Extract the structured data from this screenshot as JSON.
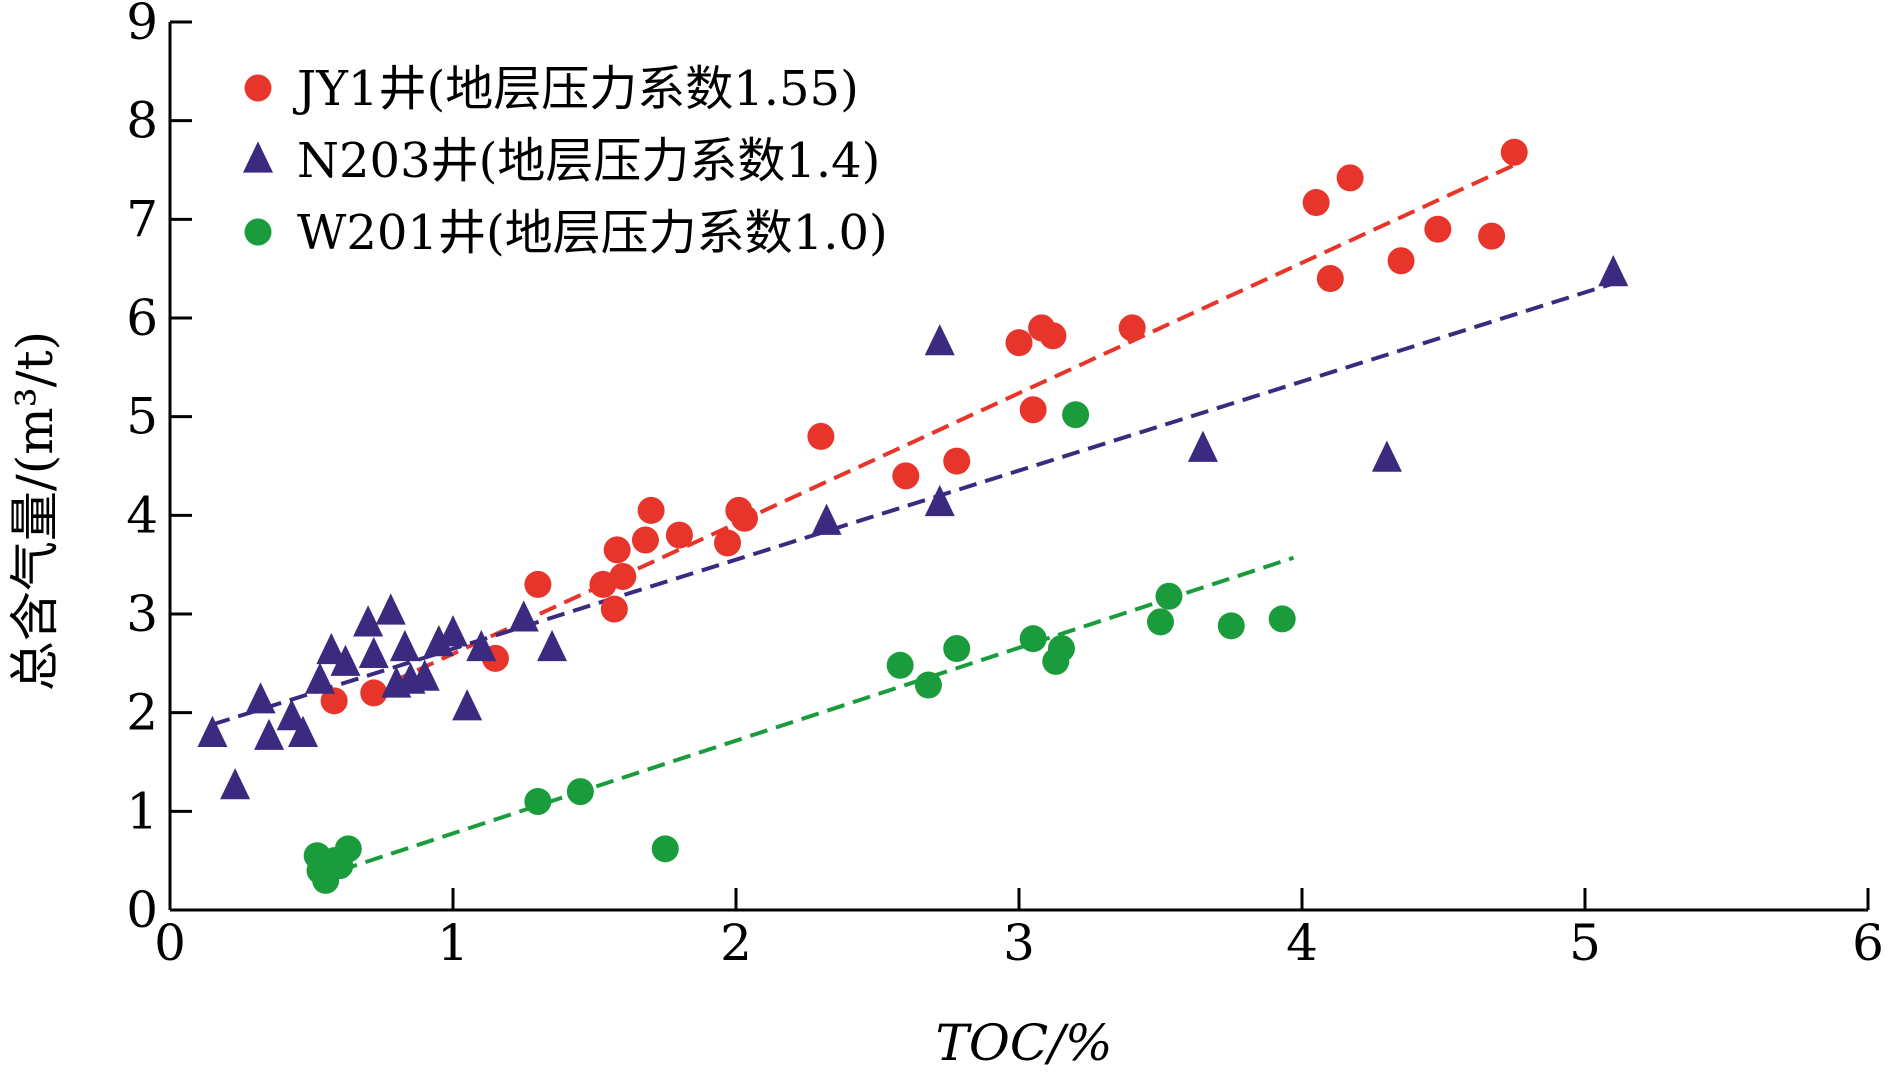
{
  "chart_data": {
    "type": "scatter",
    "xlabel": "TOC/%",
    "ylabel": "总含气量/(m³/t)",
    "xlim": [
      0,
      6
    ],
    "ylim": [
      0,
      9
    ],
    "xticks": [
      "0",
      "1",
      "2",
      "3",
      "4",
      "5",
      "6"
    ],
    "yticks": [
      "0",
      "1",
      "2",
      "3",
      "4",
      "5",
      "6",
      "7",
      "8",
      "9"
    ],
    "legend_position": "top-left",
    "grid": false,
    "series": [
      {
        "name": "JY1井(地层压力系数1.55)",
        "marker": "circle",
        "color": "#e8352b",
        "points": [
          [
            0.58,
            2.12
          ],
          [
            0.72,
            2.2
          ],
          [
            1.15,
            2.55
          ],
          [
            1.3,
            3.3
          ],
          [
            1.53,
            3.3
          ],
          [
            1.57,
            3.05
          ],
          [
            1.58,
            3.65
          ],
          [
            1.6,
            3.38
          ],
          [
            1.68,
            3.75
          ],
          [
            1.7,
            4.05
          ],
          [
            1.8,
            3.8
          ],
          [
            1.97,
            3.72
          ],
          [
            2.01,
            4.05
          ],
          [
            2.03,
            3.97
          ],
          [
            2.3,
            4.8
          ],
          [
            2.6,
            4.4
          ],
          [
            2.78,
            4.55
          ],
          [
            3.0,
            5.75
          ],
          [
            3.05,
            5.07
          ],
          [
            3.08,
            5.9
          ],
          [
            3.12,
            5.82
          ],
          [
            3.4,
            5.9
          ],
          [
            4.05,
            7.17
          ],
          [
            4.1,
            6.4
          ],
          [
            4.17,
            7.42
          ],
          [
            4.35,
            6.58
          ],
          [
            4.48,
            6.9
          ],
          [
            4.67,
            6.83
          ],
          [
            4.75,
            7.68
          ]
        ],
        "trend": [
          [
            0.7,
            2.2
          ],
          [
            4.75,
            7.55
          ]
        ]
      },
      {
        "name": "N203井(地层压力系数1.4)",
        "marker": "triangle",
        "color": "#3b2a7f",
        "points": [
          [
            0.15,
            1.78
          ],
          [
            0.23,
            1.25
          ],
          [
            0.32,
            2.12
          ],
          [
            0.35,
            1.75
          ],
          [
            0.43,
            1.95
          ],
          [
            0.47,
            1.78
          ],
          [
            0.53,
            2.32
          ],
          [
            0.57,
            2.62
          ],
          [
            0.62,
            2.5
          ],
          [
            0.7,
            2.9
          ],
          [
            0.72,
            2.58
          ],
          [
            0.78,
            3.02
          ],
          [
            0.8,
            2.28
          ],
          [
            0.83,
            2.65
          ],
          [
            0.85,
            2.32
          ],
          [
            0.9,
            2.35
          ],
          [
            0.95,
            2.7
          ],
          [
            1.0,
            2.8
          ],
          [
            1.05,
            2.05
          ],
          [
            1.1,
            2.65
          ],
          [
            1.25,
            2.95
          ],
          [
            1.35,
            2.65
          ],
          [
            2.32,
            3.93
          ],
          [
            2.72,
            4.12
          ],
          [
            2.72,
            5.75
          ],
          [
            3.65,
            4.67
          ],
          [
            4.3,
            4.57
          ],
          [
            5.1,
            6.45
          ]
        ],
        "trend": [
          [
            0.15,
            1.88
          ],
          [
            5.1,
            6.35
          ]
        ]
      },
      {
        "name": "W201井(地层压力系数1.0)",
        "marker": "circle",
        "color": "#1a9c3c",
        "points": [
          [
            0.52,
            0.55
          ],
          [
            0.53,
            0.4
          ],
          [
            0.55,
            0.3
          ],
          [
            0.58,
            0.5
          ],
          [
            0.6,
            0.45
          ],
          [
            0.63,
            0.62
          ],
          [
            1.3,
            1.1
          ],
          [
            1.45,
            1.2
          ],
          [
            1.75,
            0.62
          ],
          [
            2.58,
            2.48
          ],
          [
            2.68,
            2.28
          ],
          [
            2.78,
            2.65
          ],
          [
            3.05,
            2.75
          ],
          [
            3.13,
            2.52
          ],
          [
            3.15,
            2.65
          ],
          [
            3.2,
            5.02
          ],
          [
            3.5,
            2.92
          ],
          [
            3.53,
            3.18
          ],
          [
            3.75,
            2.88
          ],
          [
            3.93,
            2.95
          ]
        ],
        "trend": [
          [
            0.6,
            0.4
          ],
          [
            3.97,
            3.57
          ]
        ]
      }
    ]
  }
}
